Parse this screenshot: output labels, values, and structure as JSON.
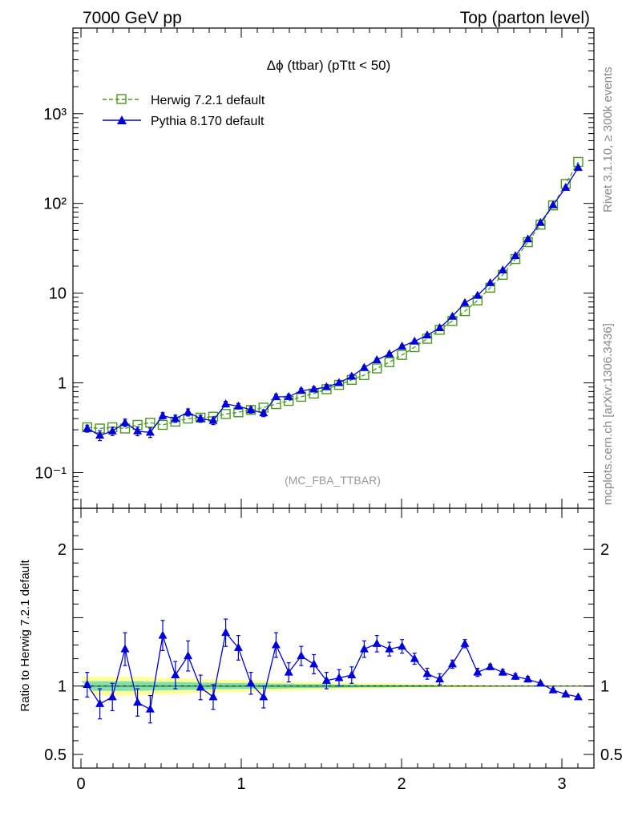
{
  "header": {
    "left": "7000 GeV pp",
    "right": "Top (parton level)"
  },
  "side_labels": {
    "rivet": "Rivet 3.1.10, ≥ 300k events",
    "mcplots": "mcplots.cern.ch [arXiv:1306.3436]"
  },
  "colors": {
    "herwig": "#4a9a1e",
    "pythia": "#0000dd",
    "band_outer": "#ffff99",
    "band_inner": "#7fe0b0"
  },
  "chart_data": [
    {
      "type": "line",
      "title": "Δϕ (ttbar) (pTtt < 50)",
      "watermark": "(MC_FBA_TTBAR)",
      "xlabel": "",
      "ylabel": "",
      "xlim": [
        -0.05,
        3.2
      ],
      "ylim": [
        0.04,
        9000
      ],
      "yscale": "log",
      "ytick_labels": [
        "10⁻¹",
        "1",
        "10",
        "10²",
        "10³"
      ],
      "legend_position": "top-left",
      "series": [
        {
          "name": "Herwig 7.2.1 default",
          "marker": "open-square",
          "line": "dashed",
          "x": [
            0.039,
            0.118,
            0.196,
            0.275,
            0.353,
            0.432,
            0.51,
            0.589,
            0.668,
            0.746,
            0.825,
            0.903,
            0.982,
            1.06,
            1.139,
            1.217,
            1.296,
            1.374,
            1.453,
            1.532,
            1.61,
            1.689,
            1.767,
            1.846,
            1.924,
            2.003,
            2.081,
            2.16,
            2.238,
            2.317,
            2.395,
            2.474,
            2.553,
            2.631,
            2.71,
            2.788,
            2.867,
            2.945,
            3.024,
            3.102
          ],
          "y": [
            0.32,
            0.31,
            0.32,
            0.31,
            0.34,
            0.36,
            0.34,
            0.37,
            0.4,
            0.41,
            0.42,
            0.45,
            0.47,
            0.5,
            0.53,
            0.58,
            0.63,
            0.7,
            0.76,
            0.85,
            0.95,
            1.08,
            1.22,
            1.45,
            1.7,
            2.05,
            2.5,
            3.1,
            3.9,
            4.9,
            6.3,
            8.3,
            11.5,
            16.0,
            24.0,
            37.0,
            58.0,
            95.0,
            165.0,
            290.0
          ]
        },
        {
          "name": "Pythia 8.170 default",
          "marker": "filled-triangle",
          "line": "solid",
          "x": [
            0.039,
            0.118,
            0.196,
            0.275,
            0.353,
            0.432,
            0.51,
            0.589,
            0.668,
            0.746,
            0.825,
            0.903,
            0.982,
            1.06,
            1.139,
            1.217,
            1.296,
            1.374,
            1.453,
            1.532,
            1.61,
            1.689,
            1.767,
            1.846,
            1.924,
            2.003,
            2.081,
            2.16,
            2.238,
            2.317,
            2.395,
            2.474,
            2.553,
            2.631,
            2.71,
            2.788,
            2.867,
            2.945,
            3.024,
            3.102
          ],
          "y": [
            0.31,
            0.26,
            0.29,
            0.36,
            0.29,
            0.28,
            0.43,
            0.4,
            0.47,
            0.4,
            0.38,
            0.58,
            0.55,
            0.5,
            0.46,
            0.7,
            0.7,
            0.82,
            0.85,
            0.9,
            1.0,
            1.18,
            1.48,
            1.8,
            2.1,
            2.55,
            2.9,
            3.4,
            4.1,
            5.5,
            7.8,
            9.4,
            13.0,
            18.0,
            26.0,
            40.0,
            61.0,
            96.0,
            150.0,
            250.0
          ]
        }
      ]
    },
    {
      "type": "line",
      "title": "",
      "xlabel": "",
      "ylabel": "Ratio to Herwig 7.2.1 default",
      "xlim": [
        -0.05,
        3.2
      ],
      "ylim": [
        0.4,
        2.3
      ],
      "xtick_labels": [
        "0",
        "1",
        "2",
        "3"
      ],
      "ytick_labels": [
        "0.5",
        "1",
        "2"
      ],
      "reference_line": 1.0,
      "series": [
        {
          "name": "Pythia 8.170 default",
          "x": [
            0.039,
            0.118,
            0.196,
            0.275,
            0.353,
            0.432,
            0.51,
            0.589,
            0.668,
            0.746,
            0.825,
            0.903,
            0.982,
            1.06,
            1.139,
            1.217,
            1.296,
            1.374,
            1.453,
            1.532,
            1.61,
            1.689,
            1.767,
            1.846,
            1.924,
            2.003,
            2.081,
            2.16,
            2.238,
            2.317,
            2.395,
            2.474,
            2.553,
            2.631,
            2.71,
            2.788,
            2.867,
            2.945,
            3.024,
            3.102
          ],
          "y": [
            1.01,
            0.87,
            0.92,
            1.27,
            0.88,
            0.83,
            1.37,
            1.08,
            1.22,
            0.99,
            0.92,
            1.39,
            1.28,
            1.02,
            0.92,
            1.3,
            1.1,
            1.22,
            1.16,
            1.04,
            1.06,
            1.08,
            1.27,
            1.31,
            1.27,
            1.29,
            1.2,
            1.09,
            1.05,
            1.16,
            1.31,
            1.1,
            1.14,
            1.1,
            1.07,
            1.05,
            1.02,
            0.97,
            0.94,
            0.92
          ],
          "err": [
            0.09,
            0.11,
            0.1,
            0.12,
            0.1,
            0.1,
            0.11,
            0.1,
            0.11,
            0.09,
            0.09,
            0.1,
            0.09,
            0.08,
            0.08,
            0.09,
            0.07,
            0.07,
            0.07,
            0.06,
            0.06,
            0.06,
            0.06,
            0.06,
            0.05,
            0.05,
            0.04,
            0.04,
            0.04,
            0.03,
            0.03,
            0.03,
            0.02,
            0.02,
            0.02,
            0.02,
            0.01,
            0.01,
            0.01,
            0.01
          ]
        }
      ],
      "band_outer_halfwidth": [
        0.07,
        0.07,
        0.07,
        0.07,
        0.07,
        0.065,
        0.06,
        0.06,
        0.055,
        0.05,
        0.05,
        0.045,
        0.045,
        0.04,
        0.04,
        0.035,
        0.035,
        0.03,
        0.03,
        0.03,
        0.025,
        0.025,
        0.02,
        0.02,
        0.02,
        0.015,
        0.015,
        0.015,
        0.01,
        0.01,
        0.01,
        0.008,
        0.007,
        0.006,
        0.005,
        0.004,
        0.004,
        0.003,
        0.003,
        0.003
      ],
      "band_inner_halfwidth": [
        0.035,
        0.035,
        0.035,
        0.035,
        0.035,
        0.032,
        0.03,
        0.03,
        0.028,
        0.025,
        0.025,
        0.022,
        0.022,
        0.02,
        0.02,
        0.018,
        0.018,
        0.015,
        0.015,
        0.015,
        0.012,
        0.012,
        0.01,
        0.01,
        0.01,
        0.008,
        0.008,
        0.008,
        0.005,
        0.005,
        0.005,
        0.004,
        0.004,
        0.003,
        0.003,
        0.002,
        0.002,
        0.002,
        0.002,
        0.002
      ]
    }
  ]
}
